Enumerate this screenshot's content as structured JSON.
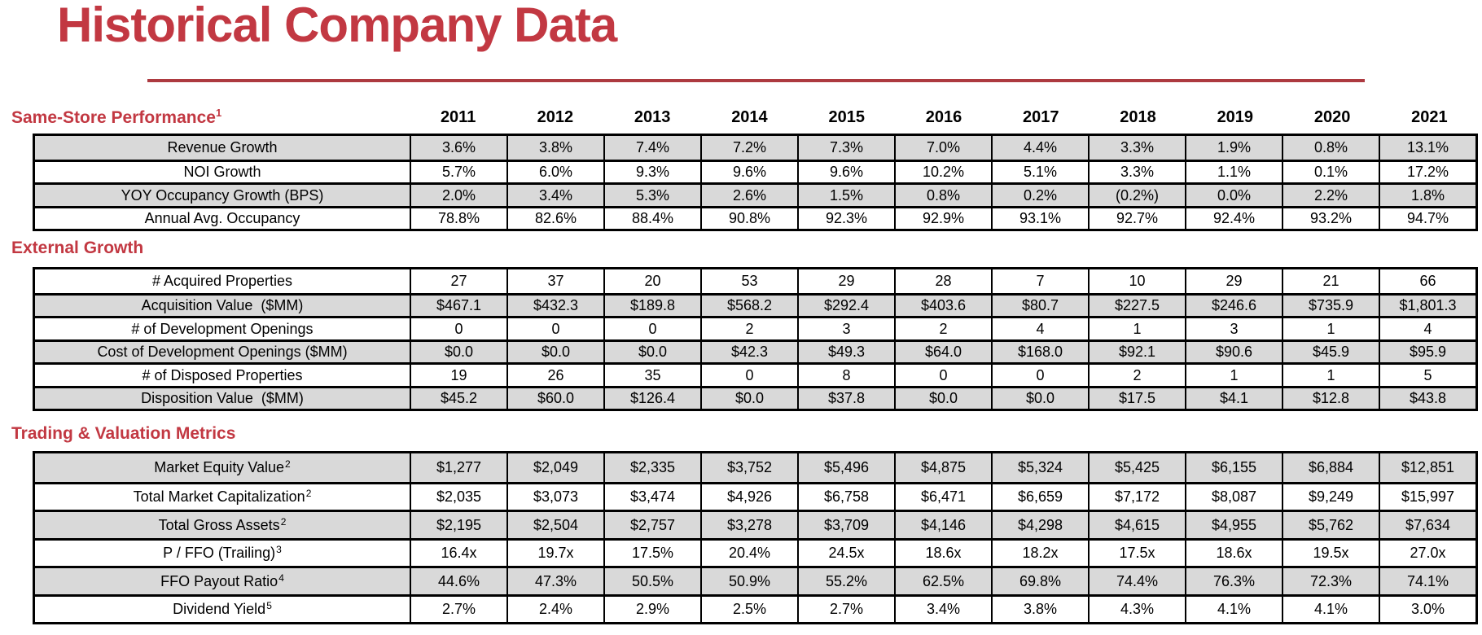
{
  "page": {
    "title": "Historical Company Data"
  },
  "colors": {
    "accent_red": "#C23842",
    "rule_red": "#AD3A40",
    "row_shaded_gray": "#D9D9D9",
    "table_border": "#000000"
  },
  "years": [
    "2011",
    "2012",
    "2013",
    "2014",
    "2015",
    "2016",
    "2017",
    "2018",
    "2019",
    "2020",
    "2021"
  ],
  "sections": [
    {
      "title": "Same-Store Performance",
      "sup": "1",
      "rows": [
        {
          "label": "Revenue Growth",
          "sup": "",
          "shaded": true,
          "values": [
            "3.6%",
            "3.8%",
            "7.4%",
            "7.2%",
            "7.3%",
            "7.0%",
            "4.4%",
            "3.3%",
            "1.9%",
            "0.8%",
            "13.1%"
          ]
        },
        {
          "label": "NOI Growth",
          "sup": "",
          "shaded": false,
          "values": [
            "5.7%",
            "6.0%",
            "9.3%",
            "9.6%",
            "9.6%",
            "10.2%",
            "5.1%",
            "3.3%",
            "1.1%",
            "0.1%",
            "17.2%"
          ]
        },
        {
          "label": "YOY Occupancy Growth (BPS)",
          "sup": "",
          "shaded": true,
          "values": [
            "2.0%",
            "3.4%",
            "5.3%",
            "2.6%",
            "1.5%",
            "0.8%",
            "0.2%",
            "(0.2%)",
            "0.0%",
            "2.2%",
            "1.8%"
          ]
        },
        {
          "label": "Annual Avg. Occupancy",
          "sup": "",
          "shaded": false,
          "values": [
            "78.8%",
            "82.6%",
            "88.4%",
            "90.8%",
            "92.3%",
            "92.9%",
            "93.1%",
            "92.7%",
            "92.4%",
            "93.2%",
            "94.7%"
          ]
        }
      ]
    },
    {
      "title": "External Growth",
      "sup": "",
      "rows": [
        {
          "label": "# Acquired Properties",
          "sup": "",
          "shaded": false,
          "values": [
            "27",
            "37",
            "20",
            "53",
            "29",
            "28",
            "7",
            "10",
            "29",
            "21",
            "66"
          ]
        },
        {
          "label": "Acquisition Value  ($MM)",
          "sup": "",
          "shaded": true,
          "values": [
            "$467.1",
            "$432.3",
            "$189.8",
            "$568.2",
            "$292.4",
            "$403.6",
            "$80.7",
            "$227.5",
            "$246.6",
            "$735.9",
            "$1,801.3"
          ]
        },
        {
          "label": "# of Development Openings",
          "sup": "",
          "shaded": false,
          "values": [
            "0",
            "0",
            "0",
            "2",
            "3",
            "2",
            "4",
            "1",
            "3",
            "1",
            "4"
          ]
        },
        {
          "label": "Cost of Development Openings ($MM)",
          "sup": "",
          "shaded": true,
          "values": [
            "$0.0",
            "$0.0",
            "$0.0",
            "$42.3",
            "$49.3",
            "$64.0",
            "$168.0",
            "$92.1",
            "$90.6",
            "$45.9",
            "$95.9"
          ]
        },
        {
          "label": "# of Disposed Properties",
          "sup": "",
          "shaded": false,
          "values": [
            "19",
            "26",
            "35",
            "0",
            "8",
            "0",
            "0",
            "2",
            "1",
            "1",
            "5"
          ]
        },
        {
          "label": "Disposition Value  ($MM)",
          "sup": "",
          "shaded": true,
          "values": [
            "$45.2",
            "$60.0",
            "$126.4",
            "$0.0",
            "$37.8",
            "$0.0",
            "$0.0",
            "$17.5",
            "$4.1",
            "$12.8",
            "$43.8"
          ]
        }
      ]
    },
    {
      "title": "Trading & Valuation Metrics",
      "sup": "",
      "rows": [
        {
          "label": "Market Equity Value",
          "sup": "2",
          "shaded": true,
          "values": [
            "$1,277",
            "$2,049",
            "$2,335",
            "$3,752",
            "$5,496",
            "$4,875",
            "$5,324",
            "$5,425",
            "$6,155",
            "$6,884",
            "$12,851"
          ]
        },
        {
          "label": "Total Market Capitalization",
          "sup": "2",
          "shaded": false,
          "values": [
            "$2,035",
            "$3,073",
            "$3,474",
            "$4,926",
            "$6,758",
            "$6,471",
            "$6,659",
            "$7,172",
            "$8,087",
            "$9,249",
            "$15,997"
          ]
        },
        {
          "label": "Total Gross Assets",
          "sup": "2",
          "shaded": true,
          "values": [
            "$2,195",
            "$2,504",
            "$2,757",
            "$3,278",
            "$3,709",
            "$4,146",
            "$4,298",
            "$4,615",
            "$4,955",
            "$5,762",
            "$7,634"
          ]
        },
        {
          "label": "P / FFO (Trailing)",
          "sup": "3",
          "shaded": false,
          "values": [
            "16.4x",
            "19.7x",
            "17.5%",
            "20.4%",
            "24.5x",
            "18.6x",
            "18.2x",
            "17.5x",
            "18.6x",
            "19.5x",
            "27.0x"
          ]
        },
        {
          "label": "FFO Payout Ratio",
          "sup": "4",
          "shaded": true,
          "values": [
            "44.6%",
            "47.3%",
            "50.5%",
            "50.9%",
            "55.2%",
            "62.5%",
            "69.8%",
            "74.4%",
            "76.3%",
            "72.3%",
            "74.1%"
          ]
        },
        {
          "label": "Dividend Yield",
          "sup": "5",
          "shaded": false,
          "values": [
            "2.7%",
            "2.4%",
            "2.9%",
            "2.5%",
            "2.7%",
            "3.4%",
            "3.8%",
            "4.3%",
            "4.1%",
            "4.1%",
            "3.0%"
          ]
        }
      ]
    }
  ]
}
